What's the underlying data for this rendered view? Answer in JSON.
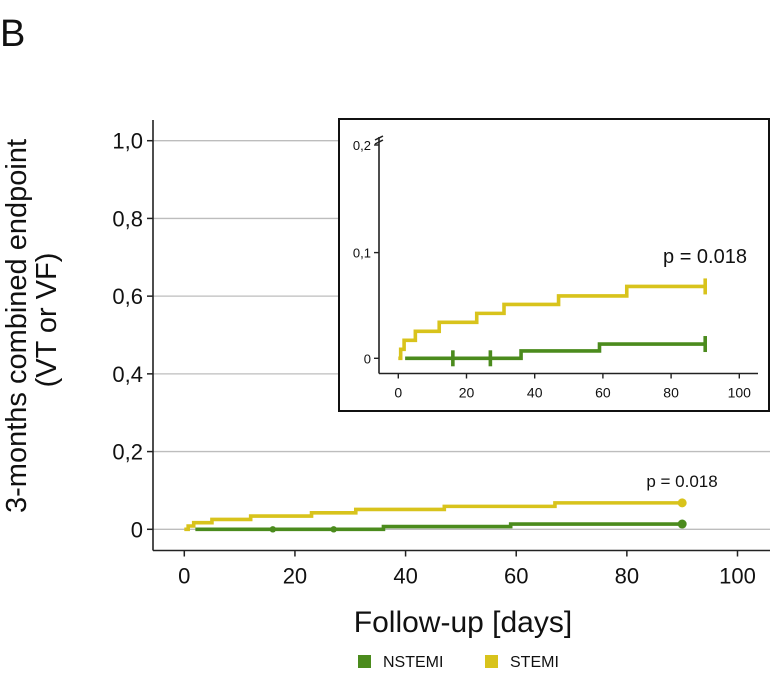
{
  "panel_label": "B",
  "colors": {
    "NSTEMI": "#4b8b1d",
    "STEMI": "#d8c31c",
    "grid": "#bdbdbd",
    "axis": "#222222"
  },
  "chart_data": [
    {
      "id": "main",
      "type": "line",
      "step": true,
      "title": "",
      "xlabel": "Follow-up [days]",
      "ylabel": [
        "3-months combined endpoint",
        "(VT or VF)"
      ],
      "xlim": [
        -5,
        105
      ],
      "ylim": [
        -0.05,
        1.05
      ],
      "x_ticks": [
        0,
        20,
        40,
        60,
        80,
        100
      ],
      "x_tick_labels": [
        "0",
        "20",
        "40",
        "60",
        "80",
        "100"
      ],
      "y_ticks": [
        0,
        0.2,
        0.4,
        0.6,
        0.8,
        1.0
      ],
      "y_tick_labels": [
        "0",
        "0,2",
        "0,4",
        "0,6",
        "0,8",
        "1,0"
      ],
      "grid": "horizontal",
      "annotation": "p = 0.018",
      "legend": {
        "position": "bottom",
        "entries": [
          "NSTEMI",
          "STEMI"
        ]
      },
      "series": [
        {
          "name": "NSTEMI",
          "x": [
            2,
            36,
            59,
            90
          ],
          "y": [
            0,
            0.007,
            0.0135,
            0.0135
          ],
          "censored_x": [
            16,
            27,
            90
          ]
        },
        {
          "name": "STEMI",
          "x": [
            0.7,
            1.7,
            5,
            12,
            23,
            31,
            47,
            67,
            90
          ],
          "y": [
            0.0085,
            0.017,
            0.0255,
            0.034,
            0.0425,
            0.051,
            0.059,
            0.068,
            0.068
          ],
          "start_x": 0,
          "censored_x": [
            90
          ]
        }
      ]
    },
    {
      "id": "inset",
      "type": "line",
      "step": true,
      "xlim": [
        -5,
        105
      ],
      "ylim": [
        -0.014,
        0.2
      ],
      "x_ticks": [
        0,
        20,
        40,
        60,
        80,
        100
      ],
      "x_tick_labels": [
        "0",
        "20",
        "40",
        "60",
        "80",
        "100"
      ],
      "y_ticks": [
        0,
        0.1,
        0.2
      ],
      "y_tick_labels": [
        "0",
        "0,1",
        "0,2"
      ],
      "axis_break": true,
      "annotation": "p = 0.018",
      "series": [
        {
          "name": "NSTEMI",
          "x": [
            2,
            36,
            59,
            90
          ],
          "y": [
            0,
            0.007,
            0.0135,
            0.0135
          ],
          "censored_x": [
            16,
            27,
            90
          ]
        },
        {
          "name": "STEMI",
          "x": [
            0.7,
            1.7,
            5,
            12,
            23,
            31,
            47,
            67,
            90
          ],
          "y": [
            0.0085,
            0.017,
            0.0255,
            0.034,
            0.0425,
            0.051,
            0.059,
            0.068,
            0.068
          ],
          "start_x": 0,
          "censored_x": [
            90
          ]
        }
      ]
    }
  ]
}
